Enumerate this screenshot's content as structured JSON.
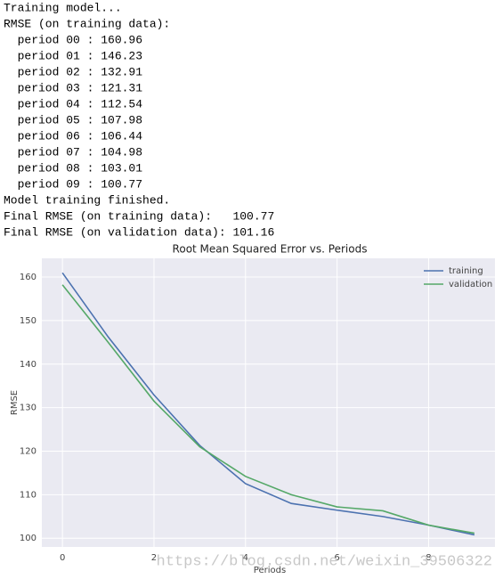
{
  "console": {
    "lines": [
      "Training model...",
      "RMSE (on training data):",
      "  period 00 : 160.96",
      "  period 01 : 146.23",
      "  period 02 : 132.91",
      "  period 03 : 121.31",
      "  period 04 : 112.54",
      "  period 05 : 107.98",
      "  period 06 : 106.44",
      "  period 07 : 104.98",
      "  period 08 : 103.01",
      "  period 09 : 100.77",
      "Model training finished.",
      "Final RMSE (on training data):   100.77",
      "Final RMSE (on validation data): 101.16"
    ]
  },
  "chart_data": {
    "type": "line",
    "title": "Root Mean Squared Error vs. Periods",
    "xlabel": "Periods",
    "ylabel": "RMSE",
    "x": [
      0,
      1,
      2,
      3,
      4,
      5,
      6,
      7,
      8,
      9
    ],
    "series": [
      {
        "name": "training",
        "color": "#4c72b0",
        "values": [
          160.96,
          146.23,
          132.91,
          121.31,
          112.54,
          107.98,
          106.44,
          104.98,
          103.01,
          100.77
        ]
      },
      {
        "name": "validation",
        "color": "#55a868",
        "values": [
          158.2,
          145.0,
          131.5,
          121.0,
          114.2,
          110.0,
          107.2,
          106.3,
          103.0,
          101.16
        ]
      }
    ],
    "xlim": [
      -0.45,
      9.45
    ],
    "ylim": [
      98,
      164.3
    ],
    "xticks": [
      0,
      2,
      4,
      6,
      8
    ],
    "yticks": [
      100,
      110,
      120,
      130,
      140,
      150,
      160
    ],
    "grid": true,
    "legend": "upper right"
  },
  "watermark": "https://blog.csdn.net/weixin_39506322"
}
